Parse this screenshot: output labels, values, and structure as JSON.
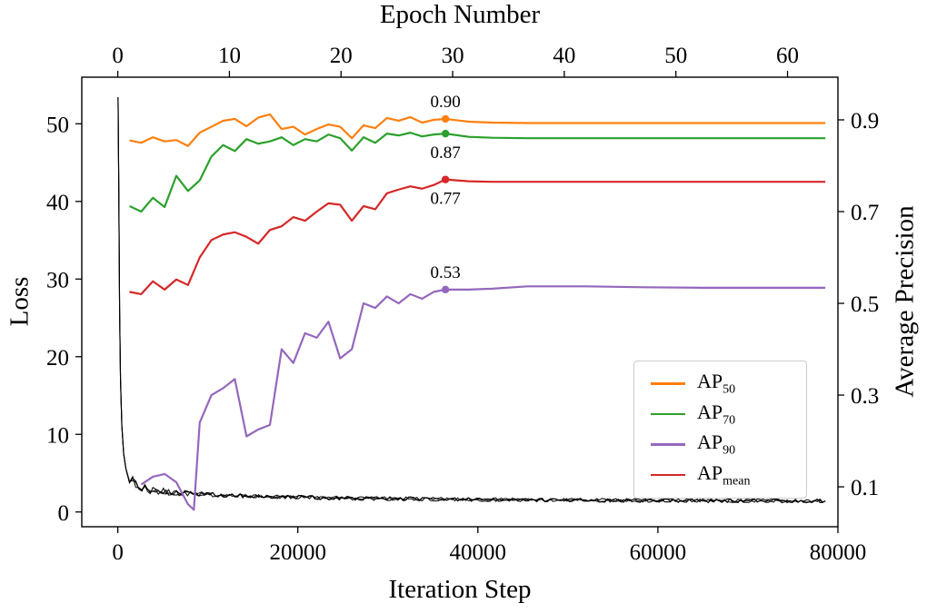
{
  "chart_data": {
    "type": "line",
    "top_xlabel": "Epoch Number",
    "xlabel": "Iteration Step",
    "ylabel_left": "Loss",
    "ylabel_right": "Average Precision",
    "x_ticks": [
      0,
      20000,
      40000,
      60000,
      80000
    ],
    "top_ticks_epochs": [
      0,
      10,
      20,
      30,
      40,
      50,
      60
    ],
    "left_ticks": [
      0,
      10,
      20,
      30,
      40,
      50
    ],
    "right_ticks": [
      0.1,
      0.3,
      0.5,
      0.7,
      0.9
    ],
    "x_range_iterations": [
      -4000,
      80000
    ],
    "loss_range": [
      -1.9,
      56.0
    ],
    "ap_range": [
      0.013,
      0.993
    ],
    "iterations_per_epoch": 1240,
    "grid": false,
    "legend_position": "lower right",
    "series": [
      {
        "name": "AP50",
        "label_main": "AP",
        "label_sub": "50",
        "color": "#ff7f0e",
        "x": [
          1300,
          2600,
          3900,
          5200,
          6500,
          7800,
          9100,
          10400,
          11700,
          13000,
          14300,
          15600,
          16900,
          18200,
          19500,
          20800,
          22100,
          23400,
          24700,
          26000,
          27300,
          28600,
          29900,
          31200,
          32500,
          33800,
          35100,
          36400,
          39000,
          41600,
          45500,
          52000,
          58500,
          65000,
          71500,
          78000,
          78600
        ],
        "values": [
          0.855,
          0.85,
          0.862,
          0.853,
          0.856,
          0.843,
          0.872,
          0.885,
          0.898,
          0.902,
          0.886,
          0.905,
          0.912,
          0.88,
          0.885,
          0.868,
          0.88,
          0.89,
          0.885,
          0.86,
          0.888,
          0.882,
          0.904,
          0.898,
          0.906,
          0.894,
          0.9,
          0.902,
          0.896,
          0.894,
          0.893,
          0.893,
          0.893,
          0.893,
          0.893,
          0.893,
          0.893
        ]
      },
      {
        "name": "AP70",
        "label_main": "AP",
        "label_sub": "70",
        "color": "#2ca02c",
        "x": [
          1300,
          2600,
          3900,
          5200,
          6500,
          7800,
          9100,
          10400,
          11700,
          13000,
          14300,
          15600,
          16900,
          18200,
          19500,
          20800,
          22100,
          23400,
          24700,
          26000,
          27300,
          28600,
          29900,
          31200,
          32500,
          33800,
          35100,
          36400,
          39000,
          41600,
          45500,
          52000,
          58500,
          65000,
          71500,
          78000,
          78600
        ],
        "values": [
          0.712,
          0.7,
          0.73,
          0.71,
          0.778,
          0.745,
          0.768,
          0.82,
          0.845,
          0.832,
          0.858,
          0.848,
          0.853,
          0.862,
          0.845,
          0.858,
          0.853,
          0.868,
          0.86,
          0.833,
          0.862,
          0.85,
          0.87,
          0.866,
          0.872,
          0.864,
          0.868,
          0.87,
          0.863,
          0.861,
          0.86,
          0.86,
          0.86,
          0.86,
          0.86,
          0.86,
          0.86
        ]
      },
      {
        "name": "AP90",
        "label_main": "AP",
        "label_sub": "90",
        "color": "#9467bd",
        "x": [
          2600,
          3900,
          5200,
          6500,
          7800,
          8450,
          9100,
          10400,
          11700,
          13000,
          14300,
          15600,
          16900,
          18200,
          19500,
          20800,
          22100,
          23400,
          24700,
          26000,
          27300,
          28600,
          29900,
          31200,
          32500,
          33800,
          35100,
          36400,
          39000,
          41600,
          45500,
          52000,
          58500,
          65000,
          71500,
          78000,
          78600
        ],
        "values": [
          0.105,
          0.122,
          0.128,
          0.11,
          0.062,
          0.05,
          0.24,
          0.3,
          0.315,
          0.335,
          0.21,
          0.225,
          0.235,
          0.4,
          0.37,
          0.435,
          0.425,
          0.46,
          0.38,
          0.4,
          0.5,
          0.49,
          0.515,
          0.5,
          0.52,
          0.51,
          0.525,
          0.53,
          0.53,
          0.532,
          0.537,
          0.537,
          0.535,
          0.534,
          0.534,
          0.534,
          0.534
        ]
      },
      {
        "name": "APmean",
        "label_main": "AP",
        "label_sub": "mean",
        "color": "#d62728",
        "x": [
          1300,
          2600,
          3900,
          5200,
          6500,
          7800,
          9100,
          10400,
          11700,
          13000,
          14300,
          15600,
          16900,
          18200,
          19500,
          20800,
          22100,
          23400,
          24700,
          26000,
          27300,
          28600,
          29900,
          31200,
          32500,
          33800,
          35100,
          36400,
          39000,
          41600,
          45500,
          52000,
          58500,
          65000,
          71500,
          78000,
          78600
        ],
        "values": [
          0.525,
          0.52,
          0.548,
          0.53,
          0.552,
          0.54,
          0.6,
          0.638,
          0.65,
          0.655,
          0.645,
          0.63,
          0.66,
          0.668,
          0.688,
          0.68,
          0.7,
          0.718,
          0.715,
          0.68,
          0.712,
          0.705,
          0.74,
          0.748,
          0.755,
          0.75,
          0.758,
          0.77,
          0.766,
          0.765,
          0.765,
          0.765,
          0.765,
          0.765,
          0.765,
          0.765,
          0.765
        ]
      }
    ],
    "loss_series": {
      "name": "Loss",
      "color": "#000000",
      "noise_amplitude": 0.25,
      "anchors_x": [
        30,
        120,
        200,
        300,
        450,
        650,
        900,
        1300,
        2000,
        3000,
        4500,
        6500,
        9000,
        13000,
        18000,
        24000,
        32000,
        42000,
        55000,
        68000,
        78600
      ],
      "anchors_y": [
        53.5,
        40,
        26,
        17,
        11,
        7.5,
        5.6,
        4.4,
        3.5,
        3.0,
        2.7,
        2.45,
        2.3,
        2.1,
        1.95,
        1.8,
        1.68,
        1.58,
        1.5,
        1.45,
        1.42
      ]
    },
    "annotations": [
      {
        "label": "0.90",
        "x": 36400,
        "ap": 0.902,
        "series": "AP50",
        "placement": "above"
      },
      {
        "label": "0.87",
        "x": 36400,
        "ap": 0.87,
        "series": "AP70",
        "placement": "below"
      },
      {
        "label": "0.77",
        "x": 36400,
        "ap": 0.77,
        "series": "APmean",
        "placement": "below"
      },
      {
        "label": "0.53",
        "x": 36400,
        "ap": 0.53,
        "series": "AP90",
        "placement": "above"
      }
    ],
    "legend": {
      "items": [
        {
          "main": "AP",
          "sub": "50",
          "color": "#ff7f0e"
        },
        {
          "main": "AP",
          "sub": "70",
          "color": "#2ca02c"
        },
        {
          "main": "AP",
          "sub": "90",
          "color": "#9467bd"
        },
        {
          "main": "AP",
          "sub": "mean",
          "color": "#d62728"
        }
      ]
    }
  }
}
